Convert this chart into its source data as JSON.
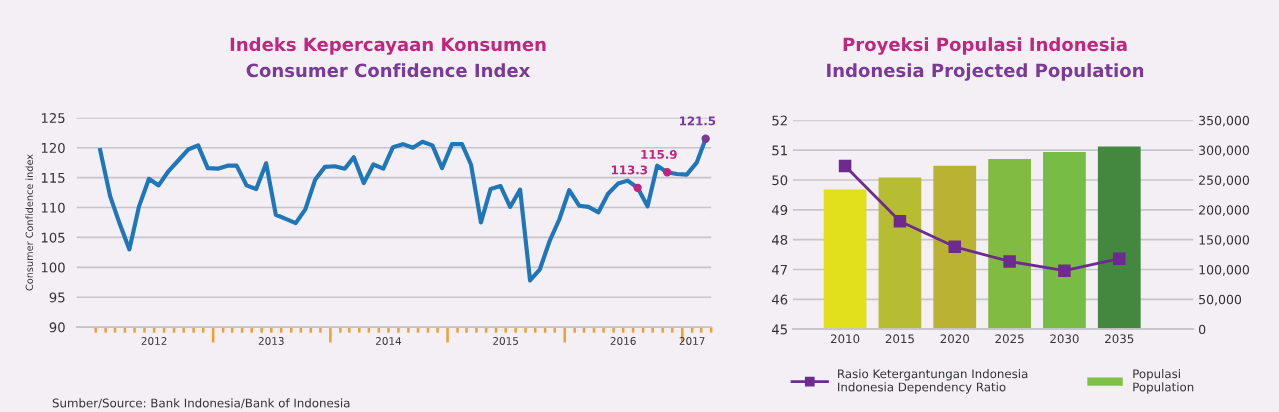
{
  "chart_data": [
    {
      "type": "line",
      "title": "Indeks Kepercayaan Konsumen",
      "subtitle": "Consumer Confidence Index",
      "ylabel": "Consumer Confidence index",
      "x": [
        "2012-01-15",
        "2012-02-15",
        "2012-03-15",
        "2012-04-15",
        "2012-05-15",
        "2012-06-15",
        "2012-07-15",
        "2012-08-15",
        "2012-09-15",
        "2012-10-15",
        "2012-11-15",
        "2012-12-15",
        "2013-01-15",
        "2013-02-15",
        "2013-03-15",
        "2013-04-15",
        "2013-05-15",
        "2013-06-15",
        "2013-07-15",
        "2013-08-15",
        "2013-09-15",
        "2013-10-15",
        "2013-11-15",
        "2013-12-15",
        "2014-01-15",
        "2014-02-15",
        "2014-03-15",
        "2014-04-15",
        "2014-05-15",
        "2014-06-15",
        "2014-07-15",
        "2014-08-15",
        "2014-09-15",
        "2014-10-15",
        "2014-11-15",
        "2014-12-15",
        "2015-01-15",
        "2015-02-15",
        "2015-03-15",
        "2015-04-15",
        "2015-05-15",
        "2015-06-15",
        "2015-07-15",
        "2015-08-15",
        "2015-09-15",
        "2015-10-15",
        "2015-11-15",
        "2015-12-15",
        "2016-01-15",
        "2016-02-15",
        "2016-03-15",
        "2016-04-15",
        "2016-05-15",
        "2016-06-15",
        "2016-07-15",
        "2016-08-15",
        "2016-09-15",
        "2016-10-15",
        "2016-11-15",
        "2016-12-15",
        "2017-01-15",
        "2017-02-15",
        "2017-03-15"
      ],
      "series": [
        {
          "color": "#1f77b9",
          "values": [
            119.6,
            111.9,
            107.4,
            103.0,
            110.2,
            114.8,
            113.7,
            116.1,
            117.9,
            119.7,
            120.4,
            116.6,
            116.5,
            117.0,
            117.0,
            113.7,
            113.1,
            117.4,
            108.8,
            108.1,
            107.4,
            109.7,
            114.7,
            116.8,
            116.9,
            116.5,
            118.4,
            114.1,
            117.2,
            116.5,
            120.1,
            120.6,
            120.0,
            121.0,
            120.4,
            116.6,
            120.6,
            120.6,
            117.2,
            107.5,
            113.1,
            113.6,
            110.1,
            113.0,
            97.8,
            99.6,
            104.4,
            108.0,
            112.9,
            110.3,
            110.1,
            109.2,
            112.3,
            114.0,
            114.5,
            113.3,
            110.2,
            117.0,
            115.9,
            115.6,
            115.5,
            117.5,
            121.5
          ]
        }
      ],
      "xlim": [
        "2011-11-03",
        "2017-04-01"
      ],
      "xticks": [
        {
          "value": "2012-01-01",
          "label": null
        },
        {
          "value": "2012-02-01",
          "label": null
        },
        {
          "value": "2012-03-01",
          "label": null
        },
        {
          "value": "2012-04-01",
          "label": null
        },
        {
          "value": "2012-05-01",
          "label": null
        },
        {
          "value": "2012-06-01",
          "label": null
        },
        {
          "value": "2012-07-01",
          "label": "2012"
        },
        {
          "value": "2012-08-01",
          "label": null
        },
        {
          "value": "2012-09-01",
          "label": null
        },
        {
          "value": "2012-10-01",
          "label": null
        },
        {
          "value": "2012-11-01",
          "label": null
        },
        {
          "value": "2012-12-01",
          "label": null
        },
        {
          "value": "2013-01-01",
          "label": null
        },
        {
          "value": "2013-02-01",
          "label": null
        },
        {
          "value": "2013-03-01",
          "label": null
        },
        {
          "value": "2013-04-01",
          "label": null
        },
        {
          "value": "2013-05-01",
          "label": null
        },
        {
          "value": "2013-06-01",
          "label": null
        },
        {
          "value": "2013-07-01",
          "label": "2013"
        },
        {
          "value": "2013-08-01",
          "label": null
        },
        {
          "value": "2013-09-01",
          "label": null
        },
        {
          "value": "2013-10-01",
          "label": null
        },
        {
          "value": "2013-11-01",
          "label": null
        },
        {
          "value": "2013-12-01",
          "label": null
        },
        {
          "value": "2014-01-01",
          "label": null
        },
        {
          "value": "2014-02-01",
          "label": null
        },
        {
          "value": "2014-03-01",
          "label": null
        },
        {
          "value": "2014-04-01",
          "label": null
        },
        {
          "value": "2014-05-01",
          "label": null
        },
        {
          "value": "2014-06-01",
          "label": null
        },
        {
          "value": "2014-07-01",
          "label": "2014"
        },
        {
          "value": "2014-08-01",
          "label": null
        },
        {
          "value": "2014-09-01",
          "label": null
        },
        {
          "value": "2014-10-01",
          "label": null
        },
        {
          "value": "2014-11-01",
          "label": null
        },
        {
          "value": "2014-12-01",
          "label": null
        },
        {
          "value": "2015-01-01",
          "label": null
        },
        {
          "value": "2015-02-01",
          "label": null
        },
        {
          "value": "2015-03-01",
          "label": null
        },
        {
          "value": "2015-04-01",
          "label": null
        },
        {
          "value": "2015-05-01",
          "label": null
        },
        {
          "value": "2015-06-01",
          "label": null
        },
        {
          "value": "2015-07-01",
          "label": "2015"
        },
        {
          "value": "2015-08-01",
          "label": null
        },
        {
          "value": "2015-09-01",
          "label": null
        },
        {
          "value": "2015-10-01",
          "label": null
        },
        {
          "value": "2015-11-01",
          "label": null
        },
        {
          "value": "2015-12-01",
          "label": null
        },
        {
          "value": "2016-01-01",
          "label": null
        },
        {
          "value": "2016-02-01",
          "label": null
        },
        {
          "value": "2016-03-01",
          "label": null
        },
        {
          "value": "2016-04-01",
          "label": null
        },
        {
          "value": "2016-05-01",
          "label": null
        },
        {
          "value": "2016-06-01",
          "label": null
        },
        {
          "value": "2016-07-01",
          "label": "2016"
        },
        {
          "value": "2016-08-01",
          "label": null
        },
        {
          "value": "2016-09-01",
          "label": null
        },
        {
          "value": "2016-10-01",
          "label": null
        },
        {
          "value": "2016-11-01",
          "label": null
        },
        {
          "value": "2016-12-01",
          "label": null
        },
        {
          "value": "2017-01-01",
          "label": null
        },
        {
          "value": "2017-02-01",
          "label": "2017"
        },
        {
          "value": "2017-03-01",
          "label": null
        },
        {
          "value": "2017-04-01",
          "label": null
        }
      ],
      "ylim": [
        90,
        125
      ],
      "yticks": [
        90,
        95,
        100,
        105,
        110,
        115,
        120,
        125
      ],
      "grid": "y",
      "annotations": [
        {
          "text": "113.3",
          "x": "2016-08-15",
          "y": 113.3
        },
        {
          "text": "115.9",
          "x": "2016-11-15",
          "y": 115.9
        },
        {
          "text": "121.5",
          "x": "2017-03-15",
          "y": 121.5
        },
        "Sumber/Source: Bank Indonesia/Bank of Indonesia"
      ]
    },
    {
      "type": "bar",
      "title": "Proyeksi Populasi Indonesia",
      "subtitle": "Indonesia Projected Population",
      "categories": [
        "2010",
        "2015",
        "2020",
        "2025",
        "2030",
        "2035"
      ],
      "series": [
        {
          "name": "Populasi\nPopulation",
          "type": "bar",
          "axis": "y2",
          "color": "#7fbf45",
          "colors": [
            "#e2df1c",
            "#b7bd33",
            "#bab232",
            "#82bb41",
            "#76bc45",
            "#43883e"
          ],
          "values": [
            234000,
            254000,
            274000,
            285000,
            297000,
            306000
          ]
        },
        {
          "name": "Rasio Ketergantungan Indonesia\nIndonesia Dependency Ratio",
          "type": "line",
          "axis": "y",
          "color": "#6d2b8f",
          "values": [
            50.47,
            48.62,
            47.76,
            47.27,
            46.96,
            47.36
          ]
        }
      ],
      "ylim": [
        45,
        52
      ],
      "yticks": [
        45,
        46,
        47,
        48,
        49,
        50,
        51,
        52
      ],
      "y2lim": [
        0,
        350000
      ],
      "y2ticks": [
        0,
        {
          "value": 50000,
          "label": "50,000"
        },
        {
          "value": 100000,
          "label": "100,000"
        },
        {
          "value": 150000,
          "label": "150,000"
        },
        {
          "value": 200000,
          "label": "200,000"
        },
        {
          "value": 250000,
          "label": "250,000"
        },
        {
          "value": 300000,
          "label": "300,000"
        },
        {
          "value": 350000,
          "label": "350,000"
        }
      ],
      "grid": "y",
      "legend": "bottom",
      "marker": "square",
      "line_style": "solid"
    }
  ]
}
